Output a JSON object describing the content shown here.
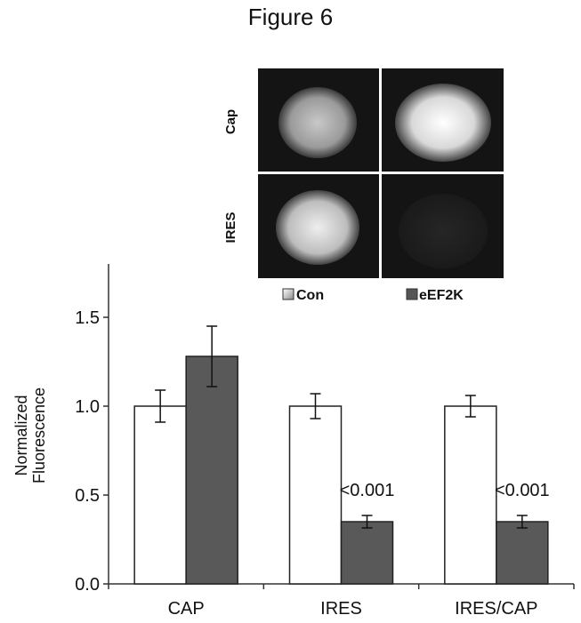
{
  "figure_title": "Figure 6",
  "micrograph": {
    "row_labels": [
      "Cap",
      "IRES"
    ],
    "legend": [
      {
        "label": "Con",
        "color": "#d0d0d0"
      },
      {
        "label": "eEF2K",
        "color": "#555555"
      }
    ]
  },
  "chart_data": {
    "type": "bar",
    "categories": [
      "CAP",
      "IRES",
      "IRES/CAP"
    ],
    "series": [
      {
        "name": "Con",
        "color": "#ffffff",
        "values": [
          1.0,
          1.0,
          1.0
        ],
        "errors": [
          0.09,
          0.07,
          0.06
        ]
      },
      {
        "name": "eEF2K",
        "color": "#595959",
        "values": [
          1.28,
          0.35,
          0.35
        ],
        "errors": [
          0.17,
          0.035,
          0.035
        ]
      }
    ],
    "ylabel": [
      "Normalized",
      "Fluorescence"
    ],
    "ylim": [
      0,
      1.8
    ],
    "yticks": [
      "0.0",
      "0.5",
      "1.0",
      "1.5"
    ],
    "annotations": [
      {
        "category_index": 1,
        "series_index": 1,
        "text": "<0.001"
      },
      {
        "category_index": 2,
        "series_index": 1,
        "text": "<0.001"
      }
    ],
    "grid": false,
    "legend_position": "top"
  }
}
